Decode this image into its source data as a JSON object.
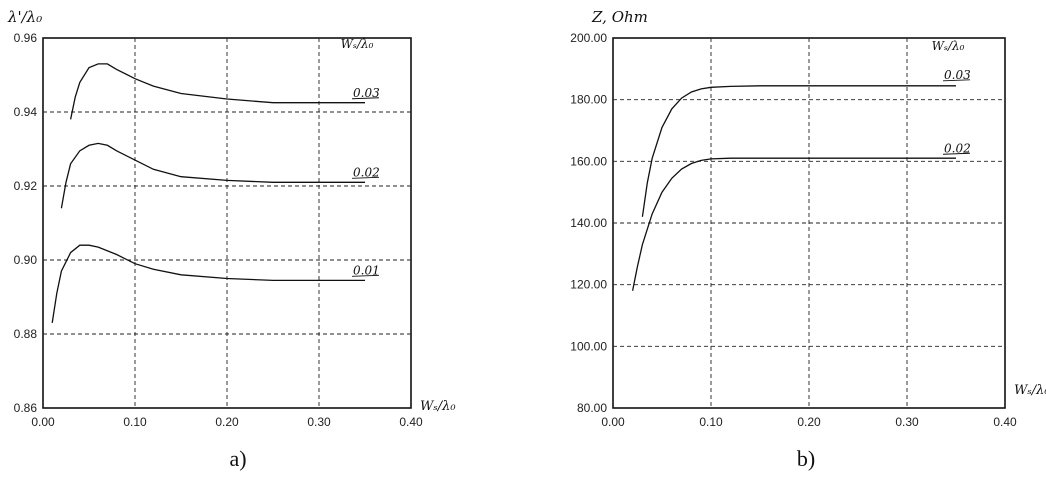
{
  "chart_data": [
    {
      "type": "line",
      "panel_label": "a)",
      "ylabel": "λ'/λ₀",
      "xlabel": "Wₛ/λ₀",
      "legend_title": "Wₛ/λ₀",
      "xlim": [
        0,
        0.4
      ],
      "ylim": [
        0.86,
        0.96
      ],
      "x_ticks": [
        "0.00",
        "0.10",
        "0.20",
        "0.30",
        "0.40"
      ],
      "y_ticks": [
        "0.86",
        "0.88",
        "0.90",
        "0.92",
        "0.94",
        "0.96"
      ],
      "grid": true,
      "series": [
        {
          "name": "0.03",
          "x": [
            0.03,
            0.035,
            0.04,
            0.05,
            0.06,
            0.07,
            0.08,
            0.1,
            0.12,
            0.15,
            0.2,
            0.25,
            0.3,
            0.35
          ],
          "y": [
            0.938,
            0.944,
            0.948,
            0.952,
            0.953,
            0.953,
            0.9515,
            0.949,
            0.947,
            0.945,
            0.9435,
            0.9425,
            0.9425,
            0.9425
          ]
        },
        {
          "name": "0.02",
          "x": [
            0.02,
            0.025,
            0.03,
            0.04,
            0.05,
            0.06,
            0.07,
            0.08,
            0.1,
            0.12,
            0.15,
            0.2,
            0.25,
            0.3,
            0.35
          ],
          "y": [
            0.914,
            0.921,
            0.926,
            0.9295,
            0.931,
            0.9315,
            0.931,
            0.9295,
            0.927,
            0.9245,
            0.9225,
            0.9215,
            0.921,
            0.921,
            0.921
          ]
        },
        {
          "name": "0.01",
          "x": [
            0.01,
            0.015,
            0.02,
            0.03,
            0.04,
            0.05,
            0.06,
            0.08,
            0.1,
            0.12,
            0.15,
            0.2,
            0.25,
            0.3,
            0.35
          ],
          "y": [
            0.883,
            0.891,
            0.897,
            0.902,
            0.904,
            0.904,
            0.9035,
            0.9015,
            0.899,
            0.8975,
            0.896,
            0.895,
            0.8945,
            0.8945,
            0.8945
          ]
        }
      ]
    },
    {
      "type": "line",
      "panel_label": "b)",
      "ylabel": "Z, Ohm",
      "xlabel": "Wₛ/λ₀",
      "legend_title": "Wₛ/λ₀",
      "xlim": [
        0,
        0.4
      ],
      "ylim": [
        80,
        200
      ],
      "x_ticks": [
        "0.00",
        "0.10",
        "0.20",
        "0.30",
        "0.40"
      ],
      "y_ticks": [
        "80.00",
        "100.00",
        "120.00",
        "140.00",
        "160.00",
        "180.00",
        "200.00"
      ],
      "grid": true,
      "series": [
        {
          "name": "0.03",
          "x": [
            0.03,
            0.035,
            0.04,
            0.05,
            0.06,
            0.07,
            0.08,
            0.09,
            0.1,
            0.12,
            0.15,
            0.2,
            0.25,
            0.3,
            0.35
          ],
          "y": [
            142,
            153,
            161,
            171,
            177,
            180.5,
            182.5,
            183.5,
            184,
            184.3,
            184.5,
            184.5,
            184.5,
            184.5,
            184.5
          ]
        },
        {
          "name": "0.02",
          "x": [
            0.02,
            0.025,
            0.03,
            0.04,
            0.05,
            0.06,
            0.07,
            0.08,
            0.09,
            0.1,
            0.12,
            0.15,
            0.2,
            0.25,
            0.3,
            0.35
          ],
          "y": [
            118,
            126,
            133,
            143,
            150,
            154.5,
            157.5,
            159.3,
            160.3,
            160.8,
            161,
            161,
            161,
            161,
            161,
            161
          ]
        }
      ]
    }
  ]
}
